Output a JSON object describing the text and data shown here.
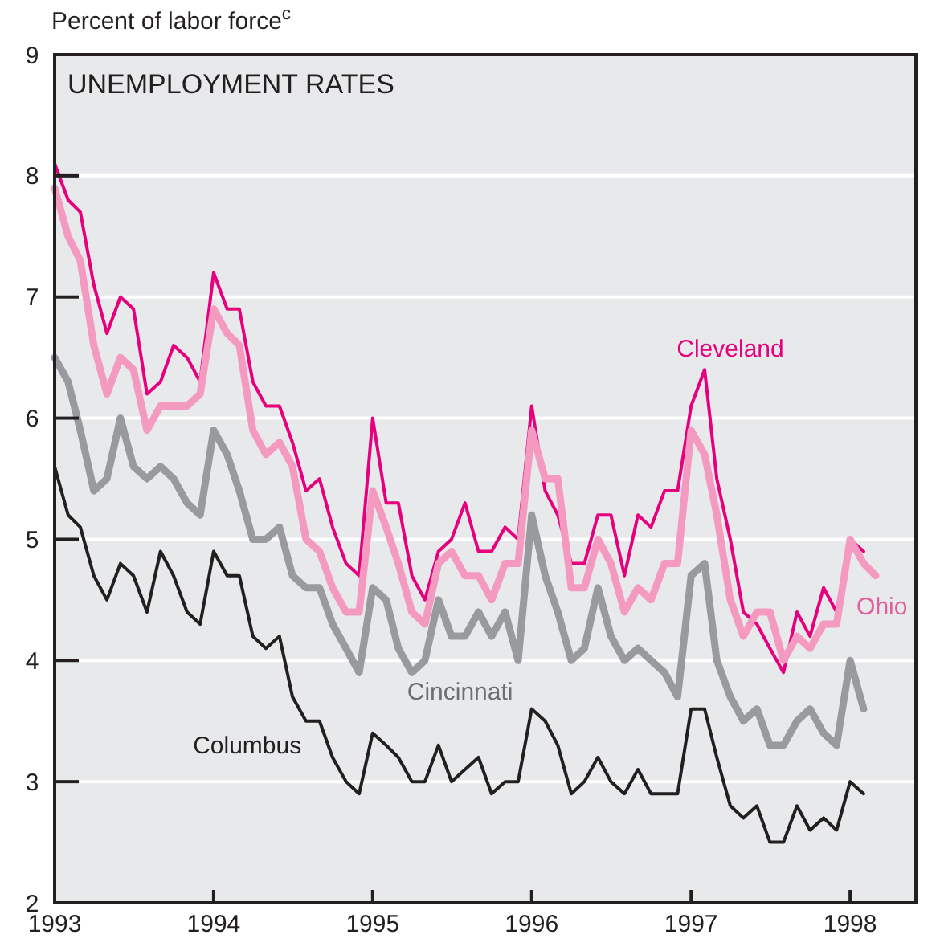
{
  "chart_data": {
    "type": "line",
    "title": "UNEMPLOYMENT RATES",
    "ylabel": "Percent of labor force$^{c}$",
    "x": [
      "1993-01",
      "1993-02",
      "1993-03",
      "1993-04",
      "1993-05",
      "1993-06",
      "1993-07",
      "1993-08",
      "1993-09",
      "1993-10",
      "1993-11",
      "1993-12",
      "1994-01",
      "1994-02",
      "1994-03",
      "1994-04",
      "1994-05",
      "1994-06",
      "1994-07",
      "1994-08",
      "1994-09",
      "1994-10",
      "1994-11",
      "1994-12",
      "1995-01",
      "1995-02",
      "1995-03",
      "1995-04",
      "1995-05",
      "1995-06",
      "1995-07",
      "1995-08",
      "1995-09",
      "1995-10",
      "1995-11",
      "1995-12",
      "1996-01",
      "1996-02",
      "1996-03",
      "1996-04",
      "1996-05",
      "1996-06",
      "1996-07",
      "1996-08",
      "1996-09",
      "1996-10",
      "1996-11",
      "1996-12",
      "1997-01",
      "1997-02",
      "1997-03",
      "1997-04",
      "1997-05",
      "1997-06",
      "1997-07",
      "1997-08",
      "1997-09",
      "1997-10",
      "1997-11",
      "1997-12",
      "1998-01",
      "1998-02"
    ],
    "series": [
      {
        "name": "Cleveland",
        "color": "#e6007e",
        "values": [
          8.1,
          7.8,
          7.7,
          7.1,
          6.7,
          7.0,
          6.9,
          6.2,
          6.3,
          6.6,
          6.5,
          6.3,
          7.2,
          6.9,
          6.9,
          6.3,
          6.1,
          6.1,
          5.8,
          5.4,
          5.5,
          5.1,
          4.8,
          4.7,
          6.0,
          5.3,
          5.3,
          4.7,
          4.5,
          4.9,
          5.0,
          5.3,
          4.9,
          4.9,
          5.1,
          5.0,
          6.1,
          5.4,
          5.2,
          4.8,
          4.8,
          5.2,
          5.2,
          4.7,
          5.2,
          5.1,
          5.4,
          5.4,
          6.1,
          6.4,
          5.5,
          5.0,
          4.4,
          4.3,
          4.1,
          3.9,
          4.4,
          4.2,
          4.6,
          4.4,
          5.0,
          4.9
        ]
      },
      {
        "name": "Ohio",
        "color": "#f49ac1",
        "x": [
          "1993-01",
          "1993-02",
          "1993-03",
          "1993-04",
          "1993-05",
          "1993-06",
          "1993-07",
          "1993-08",
          "1993-09",
          "1993-10",
          "1993-11",
          "1993-12",
          "1994-01",
          "1994-02",
          "1994-03",
          "1994-04",
          "1994-05",
          "1994-06",
          "1994-07",
          "1994-08",
          "1994-09",
          "1994-10",
          "1994-11",
          "1994-12",
          "1995-01",
          "1995-02",
          "1995-03",
          "1995-04",
          "1995-05",
          "1995-06",
          "1995-07",
          "1995-08",
          "1995-09",
          "1995-10",
          "1995-11",
          "1995-12",
          "1996-01",
          "1996-02",
          "1996-03",
          "1996-04",
          "1996-05",
          "1996-06",
          "1996-07",
          "1996-08",
          "1996-09",
          "1996-10",
          "1996-11",
          "1996-12",
          "1997-01",
          "1997-02",
          "1997-03",
          "1997-04",
          "1997-05",
          "1997-06",
          "1997-07",
          "1997-08",
          "1997-09",
          "1997-10",
          "1997-11",
          "1997-12",
          "1998-01",
          "1998-02",
          "1998-03"
        ],
        "values": [
          7.9,
          7.5,
          7.3,
          6.6,
          6.2,
          6.5,
          6.4,
          5.9,
          6.1,
          6.1,
          6.1,
          6.2,
          6.9,
          6.7,
          6.6,
          5.9,
          5.7,
          5.8,
          5.6,
          5.0,
          4.9,
          4.6,
          4.4,
          4.4,
          5.4,
          5.1,
          4.8,
          4.4,
          4.3,
          4.8,
          4.9,
          4.7,
          4.7,
          4.5,
          4.8,
          4.8,
          5.9,
          5.5,
          5.5,
          4.6,
          4.6,
          5.0,
          4.8,
          4.4,
          4.6,
          4.5,
          4.8,
          4.8,
          5.9,
          5.7,
          5.2,
          4.5,
          4.2,
          4.4,
          4.4,
          4.0,
          4.2,
          4.1,
          4.3,
          4.3,
          5.0,
          4.8,
          4.7
        ]
      },
      {
        "name": "Cincinnati",
        "color": "#999a9e",
        "values": [
          6.5,
          6.3,
          5.9,
          5.4,
          5.5,
          6.0,
          5.6,
          5.5,
          5.6,
          5.5,
          5.3,
          5.2,
          5.9,
          5.7,
          5.4,
          5.0,
          5.0,
          5.1,
          4.7,
          4.6,
          4.6,
          4.3,
          4.1,
          3.9,
          4.6,
          4.5,
          4.1,
          3.9,
          4.0,
          4.5,
          4.2,
          4.2,
          4.4,
          4.2,
          4.4,
          4.0,
          5.2,
          4.7,
          4.4,
          4.0,
          4.1,
          4.6,
          4.2,
          4.0,
          4.1,
          4.0,
          3.9,
          3.7,
          4.7,
          4.8,
          4.0,
          3.7,
          3.5,
          3.6,
          3.3,
          3.3,
          3.5,
          3.6,
          3.4,
          3.3,
          4.0,
          3.6
        ]
      },
      {
        "name": "Columbus",
        "color": "#231f20",
        "values": [
          5.6,
          5.2,
          5.1,
          4.7,
          4.5,
          4.8,
          4.7,
          4.4,
          4.9,
          4.7,
          4.4,
          4.3,
          4.9,
          4.7,
          4.7,
          4.2,
          4.1,
          4.2,
          3.7,
          3.5,
          3.5,
          3.2,
          3.0,
          2.9,
          3.4,
          3.3,
          3.2,
          3.0,
          3.0,
          3.3,
          3.0,
          3.1,
          3.2,
          2.9,
          3.0,
          3.0,
          3.6,
          3.5,
          3.3,
          2.9,
          3.0,
          3.2,
          3.0,
          2.9,
          3.1,
          2.9,
          2.9,
          2.9,
          3.6,
          3.6,
          3.2,
          2.8,
          2.7,
          2.8,
          2.5,
          2.5,
          2.8,
          2.6,
          2.7,
          2.6,
          3.0,
          2.9
        ]
      }
    ],
    "xlim": [
      "1993-01",
      "1998-06"
    ],
    "xticks": [
      {
        "value": "1993-01",
        "label": "1993"
      },
      {
        "value": "1994-01",
        "label": "1994"
      },
      {
        "value": "1995-01",
        "label": "1995"
      },
      {
        "value": "1996-01",
        "label": "1996"
      },
      {
        "value": "1997-01",
        "label": "1997"
      },
      {
        "value": "1998-01",
        "label": "1998"
      }
    ],
    "ylim": [
      2,
      9
    ],
    "yticks": [
      2,
      3,
      4,
      5,
      6,
      7,
      8,
      9
    ],
    "grid": "y",
    "line_style": "solid",
    "marker": "none"
  }
}
